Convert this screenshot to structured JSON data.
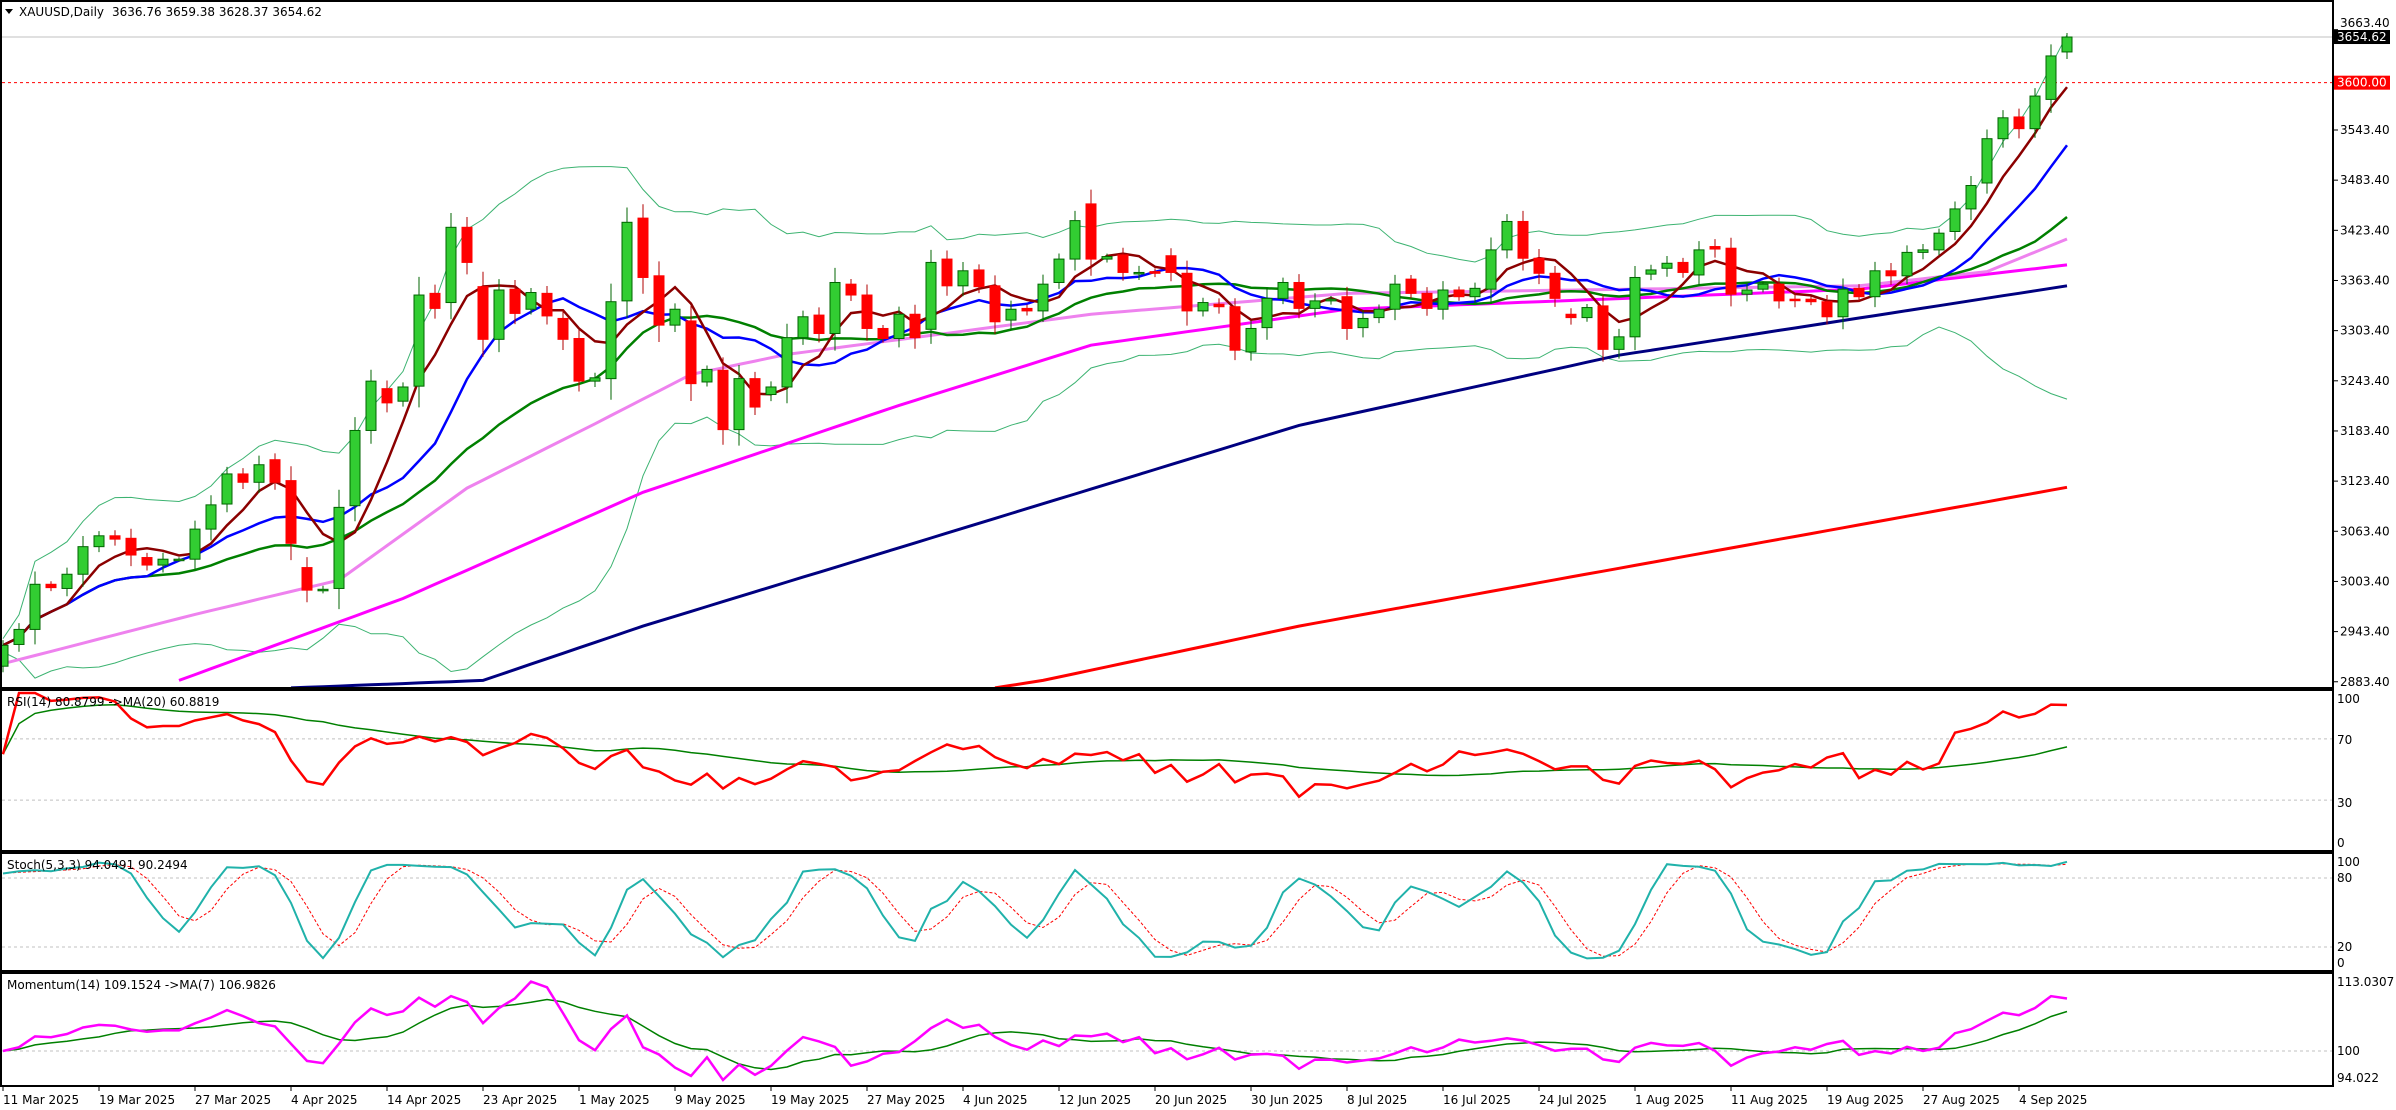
{
  "header": {
    "symbol": "XAUUSD,Daily",
    "ohlc": "3636.76 3659.38 3628.37 3654.62"
  },
  "price_axis": {
    "ticks": [
      "3663.40",
      "3543.40",
      "3483.40",
      "3423.40",
      "3363.40",
      "3303.40",
      "3243.40",
      "3183.40",
      "3123.40",
      "3063.40",
      "3003.40",
      "2943.40",
      "2883.40"
    ],
    "current_price": "3654.62",
    "level_line": "3600.00"
  },
  "panels": {
    "rsi": {
      "label": "RSI(14) 80.8799  ->MA(20) 60.8819",
      "ticks": [
        "100",
        "70",
        "30",
        "0"
      ]
    },
    "stoch": {
      "label": "Stoch(5,3,3) 94.0491 90.2494",
      "ticks": [
        "100",
        "80",
        "20",
        "0"
      ]
    },
    "momentum": {
      "label": "Momentum(14) 109.1524  ->MA(7) 106.9826",
      "ticks": [
        "113.0307",
        "100",
        "94.022"
      ]
    }
  },
  "date_axis": [
    "11 Mar 2025",
    "19 Mar 2025",
    "27 Mar 2025",
    "4 Apr 2025",
    "14 Apr 2025",
    "23 Apr 2025",
    "1 May 2025",
    "9 May 2025",
    "19 May 2025",
    "27 May 2025",
    "4 Jun 2025",
    "12 Jun 2025",
    "20 Jun 2025",
    "30 Jun 2025",
    "8 Jul 2025",
    "16 Jul 2025",
    "24 Jul 2025",
    "1 Aug 2025",
    "11 Aug 2025",
    "19 Aug 2025",
    "27 Aug 2025",
    "4 Sep 2025"
  ],
  "colors": {
    "bull": "#32cd32",
    "bear": "#ff0000",
    "ma5": "#8b0000",
    "ma10": "#0000ff",
    "ma20": "#008000",
    "ma30": "#ee82ee",
    "ma50": "#ff00ff",
    "ma100": "#000080",
    "ma200": "#ff0000",
    "bands": "#3cb371",
    "rsi": "#ff0000",
    "stochK": "#20b2aa",
    "stochD": "#ff0000",
    "mom": "#ff00ff"
  },
  "chart_data": {
    "type": "candlestick",
    "title": "XAUUSD,Daily",
    "ylim": [
      2876,
      3672
    ],
    "open": [
      2902,
      2928,
      2946,
      3000,
      2995,
      3012,
      3045,
      3058,
      3055,
      3032,
      3023,
      3030,
      3030,
      3066,
      3096,
      3132,
      3122,
      3149,
      3124,
      3020,
      2994,
      2995,
      3094,
      3184,
      3234,
      3219,
      3237,
      3348,
      3337,
      3427,
      3356,
      3293,
      3353,
      3329,
      3348,
      3318,
      3294,
      3243,
      3246,
      3339,
      3438,
      3369,
      3310,
      3315,
      3242,
      3256,
      3185,
      3246,
      3227,
      3236,
      3295,
      3322,
      3300,
      3359,
      3346,
      3306,
      3294,
      3323,
      3305,
      3389,
      3357,
      3376,
      3357,
      3316,
      3330,
      3327,
      3361,
      3389,
      3455,
      3389,
      3394,
      3373,
      3374,
      3393,
      3372,
      3327,
      3335,
      3332,
      3278,
      3307,
      3342,
      3361,
      3330,
      3339,
      3344,
      3307,
      3319,
      3329,
      3365,
      3348,
      3329,
      3352,
      3344,
      3353,
      3400,
      3434,
      3390,
      3372,
      3323,
      3319,
      3333,
      3281,
      3296,
      3371,
      3378,
      3385,
      3370,
      3404,
      3402,
      3347,
      3353,
      3359,
      3341,
      3341,
      3338,
      3320,
      3354,
      3344,
      3375,
      3369,
      3397,
      3400,
      3422,
      3449,
      3480,
      3533,
      3559,
      3545,
      3580,
      3636.76
    ],
    "close": [
      2927,
      2946,
      3000,
      2996,
      3012,
      3045,
      3058,
      3054,
      3035,
      3023,
      3030,
      3030,
      3066,
      3095,
      3132,
      3122,
      3143,
      3122,
      3049,
      2993,
      2994,
      3092,
      3184,
      3243,
      3217,
      3236,
      3346,
      3330,
      3427,
      3385,
      3293,
      3352,
      3324,
      3349,
      3321,
      3293,
      3243,
      3247,
      3338,
      3433,
      3367,
      3310,
      3329,
      3240,
      3257,
      3185,
      3246,
      3212,
      3236,
      3295,
      3320,
      3300,
      3361,
      3346,
      3306,
      3294,
      3323,
      3295,
      3385,
      3357,
      3375,
      3356,
      3314,
      3329,
      3327,
      3359,
      3389,
      3435,
      3389,
      3392,
      3373,
      3373,
      3372,
      3373,
      3327,
      3337,
      3332,
      3280,
      3306,
      3342,
      3361,
      3330,
      3339,
      3341,
      3306,
      3318,
      3329,
      3359,
      3348,
      3330,
      3352,
      3344,
      3354,
      3400,
      3434,
      3390,
      3372,
      3342,
      3319,
      3331,
      3281,
      3296,
      3367,
      3376,
      3384,
      3373,
      3400,
      3401,
      3347,
      3352,
      3359,
      3339,
      3340,
      3338,
      3320,
      3353,
      3344,
      3375,
      3369,
      3397,
      3400,
      3420,
      3449,
      3477,
      3533,
      3558,
      3545,
      3584,
      3632,
      3654.62
    ],
    "last_bar": {
      "open": 3636.76,
      "high": 3659.38,
      "low": 3628.37,
      "close": 3654.62
    },
    "moving_averages_points": {
      "ma30": [
        [
          0,
          2905
        ],
        [
          12,
          2964
        ],
        [
          21,
          3005
        ],
        [
          29,
          3115
        ],
        [
          37,
          3192
        ],
        [
          43,
          3251
        ],
        [
          49,
          3275
        ],
        [
          68,
          3323
        ],
        [
          84,
          3348
        ],
        [
          116,
          3357
        ],
        [
          124,
          3374
        ],
        [
          129,
          3413
        ]
      ],
      "ma50": [
        [
          11,
          2885
        ],
        [
          25,
          2983
        ],
        [
          40,
          3110
        ],
        [
          56,
          3214
        ],
        [
          68,
          3286
        ],
        [
          84,
          3329
        ],
        [
          116,
          3353
        ],
        [
          129,
          3382
        ]
      ],
      "ma100": [
        [
          18,
          2876
        ],
        [
          30,
          2885
        ],
        [
          40,
          2950
        ],
        [
          81,
          3190
        ],
        [
          101,
          3274
        ],
        [
          129,
          3357
        ]
      ],
      "ma200": [
        [
          62,
          2876
        ],
        [
          65,
          2885
        ],
        [
          81,
          2950
        ],
        [
          129,
          3116
        ]
      ]
    },
    "date_label_interval_bars": 6,
    "rsi_levels": [
      70,
      30
    ],
    "stoch_levels": [
      80,
      20
    ],
    "momentum_level": 100
  }
}
